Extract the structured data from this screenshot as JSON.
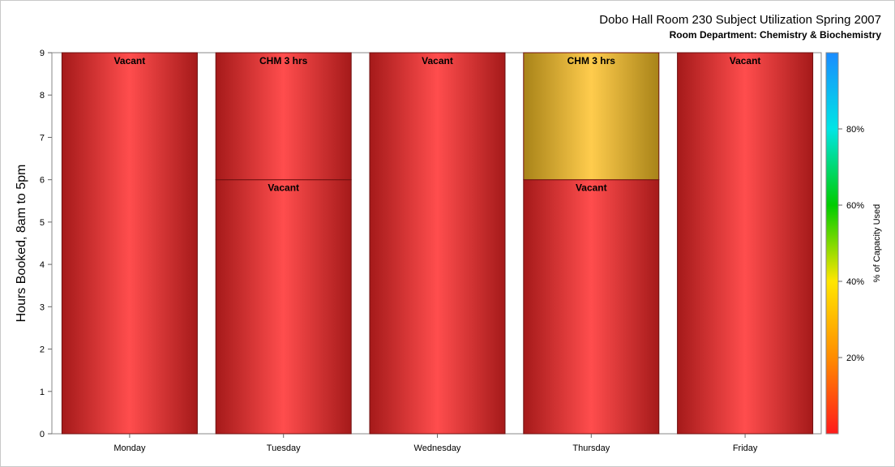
{
  "chart_data": {
    "type": "bar",
    "stacked": true,
    "title": "Dobo Hall Room 230 Subject Utilization Spring 2007",
    "subtitle": "Room Department:  Chemistry & Biochemistry",
    "ylabel": "Hours Booked, 8am to 5pm",
    "xlabel": "",
    "ylim": [
      0,
      9
    ],
    "yticks": [
      "0",
      "1",
      "2",
      "3",
      "4",
      "5",
      "6",
      "7",
      "8",
      "9"
    ],
    "grid": false,
    "categories": [
      "Monday",
      "Tuesday",
      "Wednesday",
      "Thursday",
      "Friday"
    ],
    "bars": [
      {
        "category": "Monday",
        "segments": [
          {
            "label": "Vacant",
            "start": 0,
            "end": 9,
            "capacity_pct": 0
          }
        ]
      },
      {
        "category": "Tuesday",
        "segments": [
          {
            "label": "Vacant",
            "start": 0,
            "end": 6,
            "capacity_pct": 0
          },
          {
            "label": "CHM 3 hrs",
            "start": 6,
            "end": 9,
            "capacity_pct": 0
          }
        ]
      },
      {
        "category": "Wednesday",
        "segments": [
          {
            "label": "Vacant",
            "start": 0,
            "end": 9,
            "capacity_pct": 0
          }
        ]
      },
      {
        "category": "Thursday",
        "segments": [
          {
            "label": "Vacant",
            "start": 0,
            "end": 6,
            "capacity_pct": 0
          },
          {
            "label": "CHM 3 hrs",
            "start": 6,
            "end": 9,
            "capacity_pct": 45
          }
        ]
      },
      {
        "category": "Friday",
        "segments": [
          {
            "label": "Vacant",
            "start": 0,
            "end": 9,
            "capacity_pct": 0
          }
        ]
      }
    ],
    "colorbar": {
      "title": "% of Capacity Used",
      "range": [
        0,
        100
      ],
      "ticks": [
        {
          "value": 20,
          "label": "20%"
        },
        {
          "value": 40,
          "label": "40%"
        },
        {
          "value": 60,
          "label": "60%"
        },
        {
          "value": 80,
          "label": "80%"
        }
      ],
      "stops": [
        "#ff1a1a",
        "#ff8c00",
        "#ffe600",
        "#00cc00",
        "#00e5e5",
        "#1a8cff"
      ]
    },
    "colors": {
      "red": "#ff4d4d",
      "red_dark": "#a51a1a",
      "gold": "#ffcc4d",
      "gold_dark": "#a88318"
    }
  }
}
